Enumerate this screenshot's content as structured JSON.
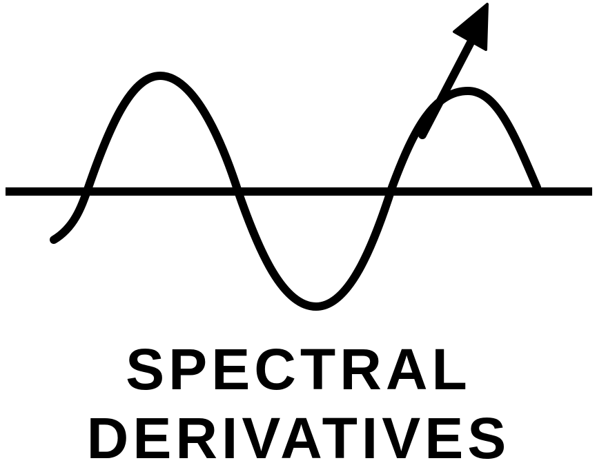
{
  "logo": {
    "title_line_1": "SPECTRAL",
    "title_line_2": "DERIVATIVES",
    "ink_color": "#000000",
    "background_color": "#ffffff",
    "icon": "sine-wave-with-arrow-icon"
  }
}
